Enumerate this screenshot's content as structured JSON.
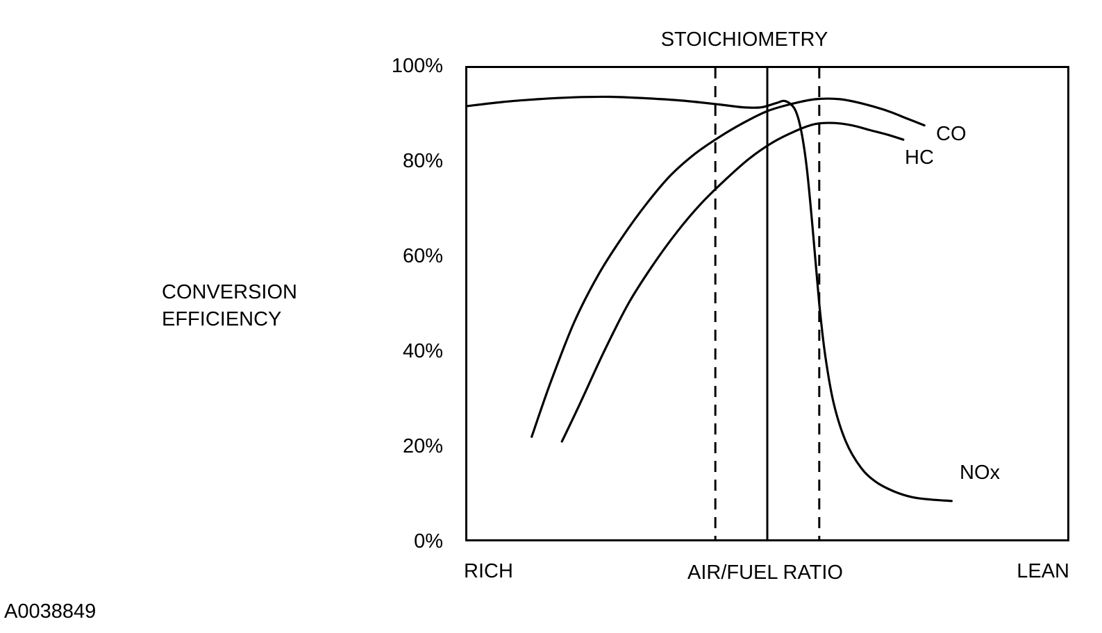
{
  "figure_id": "A0038849",
  "chart_data": {
    "type": "line",
    "title": "STOICHIOMETRY",
    "ylabel": "CONVERSION\nEFFICIENCY",
    "xlabel": "AIR/FUEL RATIO",
    "x_left_label": "RICH",
    "x_right_label": "LEAN",
    "y_ticks": [
      "0%",
      "20%",
      "40%",
      "60%",
      "80%",
      "100%"
    ],
    "y_tick_values": [
      0,
      20,
      40,
      60,
      80,
      100
    ],
    "x_range": [
      0,
      100
    ],
    "y_range": [
      0,
      100
    ],
    "grid": false,
    "legend_position": "labels-at-line-ends",
    "line_color": "#000000",
    "reference_lines": {
      "stoichiometry_x": 50,
      "window_dashed_x": [
        41.4,
        58.6
      ]
    },
    "series": [
      {
        "name": "CO",
        "points": [
          [
            11,
            22
          ],
          [
            14,
            33
          ],
          [
            18,
            46
          ],
          [
            22,
            56
          ],
          [
            26,
            64
          ],
          [
            30,
            71
          ],
          [
            34,
            77
          ],
          [
            38,
            81.5
          ],
          [
            42,
            85
          ],
          [
            46,
            88
          ],
          [
            50,
            90.5
          ],
          [
            54,
            92
          ],
          [
            58,
            93
          ],
          [
            62,
            93
          ],
          [
            66,
            92
          ],
          [
            70,
            90.5
          ],
          [
            73,
            89
          ],
          [
            76,
            87.5
          ]
        ]
      },
      {
        "name": "HC",
        "points": [
          [
            16,
            21
          ],
          [
            19,
            29
          ],
          [
            23,
            40
          ],
          [
            27,
            50
          ],
          [
            31,
            58
          ],
          [
            35,
            65
          ],
          [
            39,
            71
          ],
          [
            43,
            76
          ],
          [
            47,
            80.5
          ],
          [
            51,
            84
          ],
          [
            55,
            86.5
          ],
          [
            58,
            87.8
          ],
          [
            61,
            88
          ],
          [
            64,
            87.5
          ],
          [
            67,
            86.5
          ],
          [
            70,
            85.5
          ],
          [
            72.5,
            84.5
          ]
        ]
      },
      {
        "name": "NOx",
        "points": [
          [
            0,
            91.5
          ],
          [
            6,
            92.4
          ],
          [
            12,
            93
          ],
          [
            18,
            93.4
          ],
          [
            24,
            93.5
          ],
          [
            30,
            93.2
          ],
          [
            36,
            92.7
          ],
          [
            42,
            91.9
          ],
          [
            46,
            91.3
          ],
          [
            49,
            91.3
          ],
          [
            51.5,
            92.2
          ],
          [
            53,
            92.6
          ],
          [
            54.5,
            91
          ],
          [
            55.5,
            87
          ],
          [
            56.5,
            79
          ],
          [
            57.5,
            66
          ],
          [
            58.6,
            50
          ],
          [
            59.6,
            39
          ],
          [
            61,
            29
          ],
          [
            63,
            21
          ],
          [
            65.5,
            15.5
          ],
          [
            68,
            12.5
          ],
          [
            71,
            10.5
          ],
          [
            74,
            9.3
          ],
          [
            77,
            8.8
          ],
          [
            80.5,
            8.5
          ]
        ]
      }
    ]
  }
}
